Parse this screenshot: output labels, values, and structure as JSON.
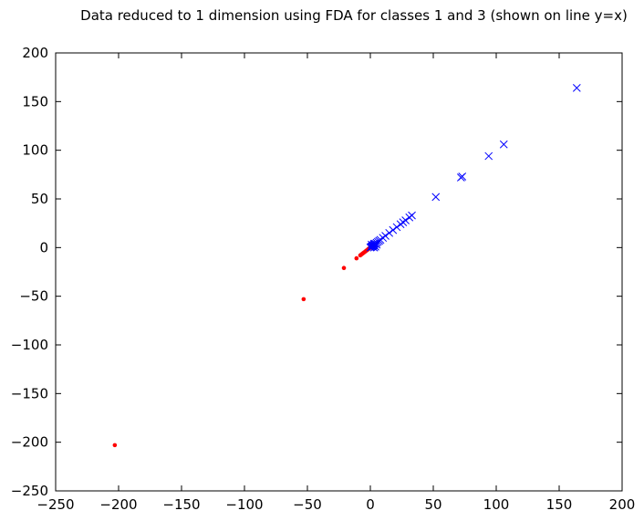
{
  "chart_data": {
    "type": "scatter",
    "title": "Data reduced to 1 dimension using FDA for classes 1 and 3 (shown on line y=x)",
    "xlabel": "",
    "ylabel": "",
    "xlim": [
      -250,
      200
    ],
    "ylim": [
      -250,
      200
    ],
    "grid": false,
    "x_ticks": [
      -250,
      -200,
      -150,
      -100,
      -50,
      0,
      50,
      100,
      150,
      200
    ],
    "y_ticks": [
      -250,
      -200,
      -150,
      -100,
      -50,
      0,
      50,
      100,
      150,
      200
    ],
    "x_tick_labels": [
      "−250",
      "−200",
      "−150",
      "−100",
      "−50",
      "0",
      "50",
      "100",
      "150",
      "200"
    ],
    "y_tick_labels": [
      "−250",
      "−200",
      "−150",
      "−100",
      "−50",
      "0",
      "50",
      "100",
      "150",
      "200"
    ],
    "series": [
      {
        "marker": "dot",
        "color": "#ff0000",
        "points": [
          [
            -203,
            -203
          ],
          [
            -53,
            -53
          ],
          [
            -21,
            -21
          ],
          [
            -11,
            -11
          ],
          [
            -8,
            -8
          ],
          [
            -7,
            -7
          ],
          [
            -6,
            -6
          ],
          [
            -5,
            -5
          ],
          [
            -4,
            -4
          ],
          [
            -3,
            -3
          ],
          [
            -2,
            -2
          ],
          [
            -1.5,
            -1.5
          ],
          [
            -1,
            -1
          ],
          [
            -0.5,
            -0.5
          ],
          [
            0,
            0
          ],
          [
            0.5,
            0.5
          ],
          [
            1,
            1
          ],
          [
            1.5,
            1.5
          ]
        ]
      },
      {
        "marker": "x",
        "color": "#0000ff",
        "points": [
          [
            164,
            164
          ],
          [
            106,
            106
          ],
          [
            94,
            94
          ],
          [
            73,
            73
          ],
          [
            72,
            72
          ],
          [
            52,
            52
          ],
          [
            33,
            33
          ],
          [
            31,
            31
          ],
          [
            28,
            28
          ],
          [
            26,
            26
          ],
          [
            24,
            24
          ],
          [
            21,
            21
          ],
          [
            18,
            18
          ],
          [
            15,
            15
          ],
          [
            12,
            12
          ],
          [
            10,
            10
          ],
          [
            8,
            8
          ],
          [
            7,
            7
          ],
          [
            6,
            6
          ],
          [
            5,
            5
          ],
          [
            4,
            4
          ],
          [
            3,
            3
          ],
          [
            2.5,
            2.5
          ],
          [
            2,
            2
          ],
          [
            1.5,
            1.5
          ],
          [
            1,
            1
          ],
          [
            0.5,
            0.5
          ],
          [
            0,
            0
          ],
          [
            3,
            0
          ],
          [
            4,
            1
          ],
          [
            2,
            1
          ],
          [
            3,
            4
          ],
          [
            5,
            3
          ],
          [
            1,
            3
          ]
        ]
      }
    ]
  }
}
